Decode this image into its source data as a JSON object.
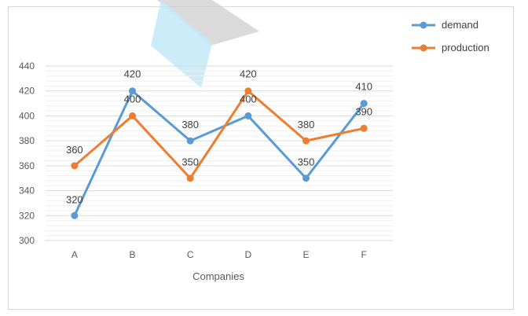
{
  "chart_data": {
    "type": "line",
    "title": "",
    "xlabel": "Companies",
    "ylabel": "",
    "categories": [
      "A",
      "B",
      "C",
      "D",
      "E",
      "F"
    ],
    "series": [
      {
        "name": "demand",
        "values": [
          320,
          420,
          380,
          400,
          350,
          410
        ],
        "color": "#5b9bd5"
      },
      {
        "name": "production",
        "values": [
          360,
          400,
          350,
          420,
          380,
          390
        ],
        "color": "#ed7d31"
      }
    ],
    "ylim": [
      300,
      440
    ],
    "yticks": [
      300,
      320,
      340,
      360,
      380,
      400,
      420,
      440
    ],
    "grid": true,
    "legend_position": "top-right",
    "data_labels": true
  }
}
